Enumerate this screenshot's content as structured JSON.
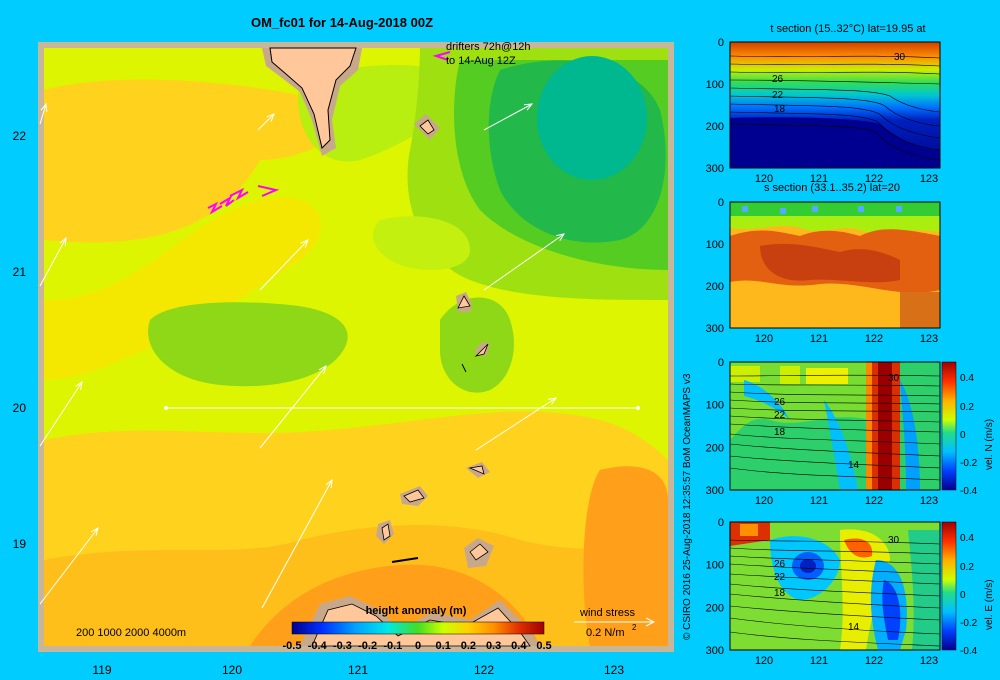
{
  "main_title": "OM_fc01 for 14-Aug-2018 00Z",
  "drifters_text": [
    "drifters 72h@12h",
    "to 14-Aug 12Z"
  ],
  "map": {
    "lon_ticks": [
      "119",
      "120",
      "121",
      "122",
      "123"
    ],
    "lat_ticks": [
      "22",
      "21",
      "20",
      "19"
    ],
    "depth_legend": "200  1000  2000  4000m",
    "wind_stress_label": "wind stress",
    "wind_stress_value": "0.2 N/m",
    "wind_stress_exp": "2"
  },
  "colorbar": {
    "title": "height anomaly (m)",
    "labels": [
      "-0.5",
      "-0.4",
      "-0.3",
      "-0.2",
      "-0.1",
      "0",
      "0.1",
      "0.2",
      "0.3",
      "0.4",
      "0.5"
    ]
  },
  "credit": "© CSIRO 2016   25-Aug-2018 12:35:57 BoM OceanMAPS v3",
  "panels": [
    {
      "title": "t section (15..32°C) lat=19.95 at",
      "contours": [
        "30",
        "26",
        "22",
        "18"
      ],
      "colorbar": null
    },
    {
      "title": "s section (33.1..35.2) lat=20",
      "contours": [],
      "colorbar": null
    },
    {
      "title": "",
      "contours": [
        "30",
        "26",
        "22",
        "18",
        "14"
      ],
      "colorbar": {
        "label": "vel. N (m/s)",
        "ticks": [
          "0.4",
          "0.2",
          "0",
          "-0.2",
          "-0.4"
        ]
      }
    },
    {
      "title": "",
      "contours": [
        "30",
        "26",
        "22",
        "18",
        "14"
      ],
      "colorbar": {
        "label": "vel. E (m/s)",
        "ticks": [
          "0.4",
          "0.2",
          "0",
          "-0.2",
          "-0.4"
        ]
      }
    }
  ],
  "section_axes": {
    "y_ticks": [
      "0",
      "100",
      "200",
      "300"
    ],
    "x_ticks": [
      "120",
      "121",
      "122",
      "123"
    ]
  }
}
